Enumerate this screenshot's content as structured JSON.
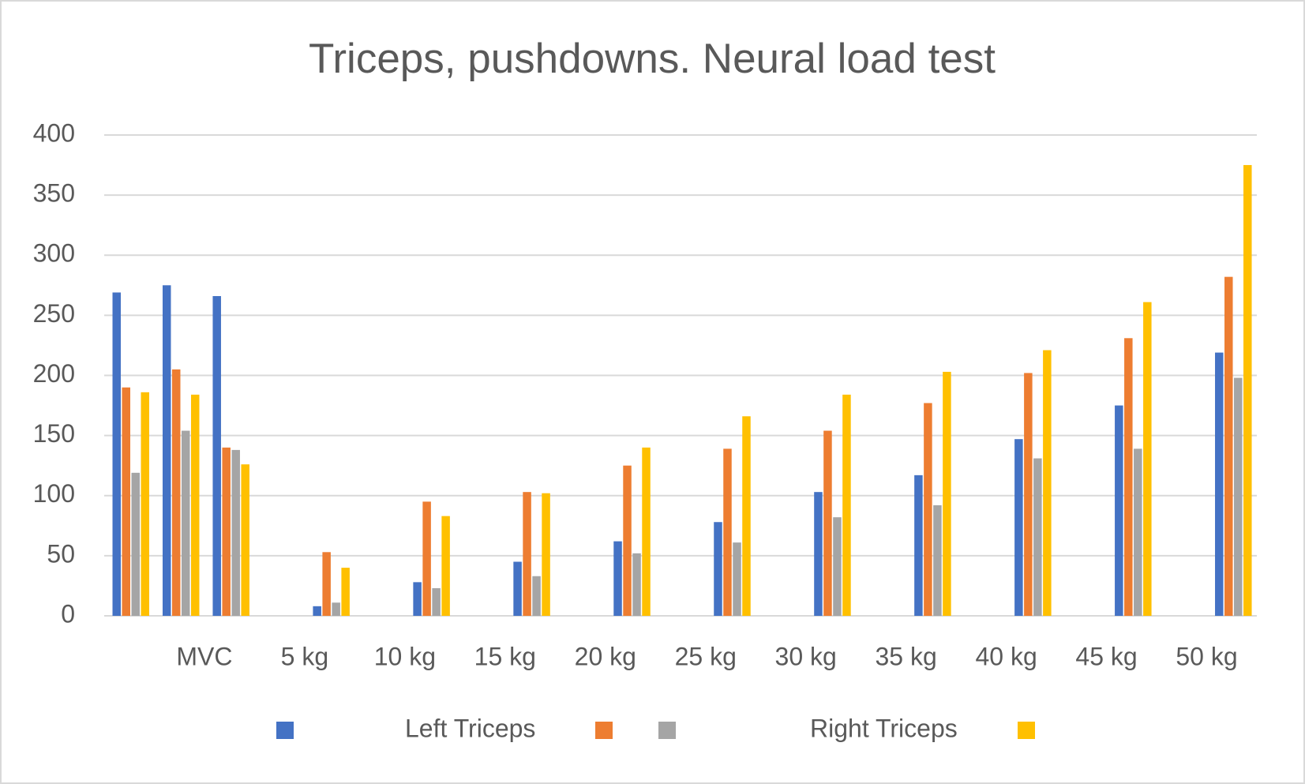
{
  "chart_data": {
    "type": "bar",
    "title": "Triceps, pushdowns. Neural load test",
    "categories": [
      null,
      "MVC",
      null,
      "5 kg",
      null,
      "10 kg",
      null,
      "15 kg",
      null,
      "20 kg",
      null,
      "25 kg",
      null,
      "30 kg",
      null,
      "35 kg",
      null,
      "40 kg",
      null,
      "45 kg",
      null,
      "50 kg",
      null
    ],
    "series": [
      {
        "name": "Left Triceps",
        "color": "#4472c4",
        "values": [
          269,
          275,
          266,
          null,
          8,
          null,
          28,
          null,
          45,
          null,
          62,
          null,
          78,
          null,
          103,
          null,
          117,
          null,
          147,
          null,
          175,
          null,
          219
        ]
      },
      {
        "name": null,
        "color": "#ed7d31",
        "values": [
          190,
          205,
          140,
          null,
          53,
          null,
          95,
          null,
          103,
          null,
          125,
          null,
          139,
          null,
          154,
          null,
          177,
          null,
          202,
          null,
          231,
          null,
          282
        ]
      },
      {
        "name": "Right Triceps",
        "color": "#a5a5a5",
        "values": [
          119,
          154,
          138,
          null,
          11,
          null,
          23,
          null,
          33,
          null,
          52,
          null,
          61,
          null,
          82,
          null,
          92,
          null,
          131,
          null,
          139,
          null,
          198
        ]
      },
      {
        "name": null,
        "color": "#ffc000",
        "values": [
          186,
          184,
          126,
          null,
          40,
          null,
          83,
          null,
          102,
          null,
          140,
          null,
          166,
          null,
          184,
          null,
          203,
          null,
          221,
          null,
          261,
          null,
          375
        ]
      }
    ],
    "ylim": [
      0,
      400
    ],
    "yticks": [
      0,
      50,
      100,
      150,
      200,
      250,
      300,
      350,
      400
    ],
    "grid": true,
    "legend": "bottom"
  }
}
